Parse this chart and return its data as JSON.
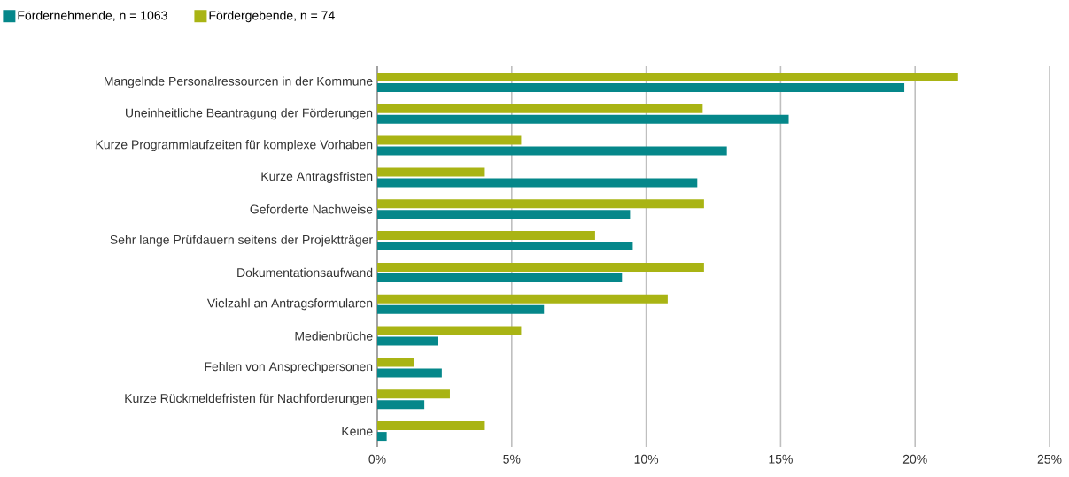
{
  "chart_data": {
    "type": "bar",
    "orientation": "horizontal",
    "categories": [
      "Mangelnde Personalressourcen in der Kommune",
      "Uneinheitliche Beantragung der Förderungen",
      "Kurze Programmlaufzeiten für komplexe Vorhaben",
      "Kurze Antragsfristen",
      "Geforderte Nachweise",
      "Sehr lange Prüfdauern seitens der Projektträger",
      "Dokumentationsaufwand",
      "Vielzahl an Antragsformularen",
      "Medienbrüche",
      "Fehlen von Ansprechpersonen",
      "Kurze Rückmeldefristen für Nachforderungen",
      "Keine"
    ],
    "series": [
      {
        "name": "Fördernehmende, n = 1063",
        "color": "#05878a",
        "values": [
          19.6,
          15.3,
          13.0,
          11.9,
          9.4,
          9.5,
          9.1,
          6.2,
          2.25,
          2.4,
          1.75,
          0.35
        ]
      },
      {
        "name": "Fördergebende, n = 74",
        "color": "#a9b414",
        "values": [
          21.6,
          12.1,
          5.35,
          4.0,
          12.15,
          8.1,
          12.15,
          10.8,
          5.35,
          1.35,
          2.7,
          4.0
        ]
      }
    ],
    "xlim": [
      0,
      25
    ],
    "xticks": [
      {
        "value": 0,
        "label": "0%"
      },
      {
        "value": 5,
        "label": "5%"
      },
      {
        "value": 10,
        "label": "10%"
      },
      {
        "value": 15,
        "label": "15%"
      },
      {
        "value": 20,
        "label": "20%"
      },
      {
        "value": 25,
        "label": "25%"
      }
    ],
    "grid": "x",
    "legend": "top left"
  }
}
